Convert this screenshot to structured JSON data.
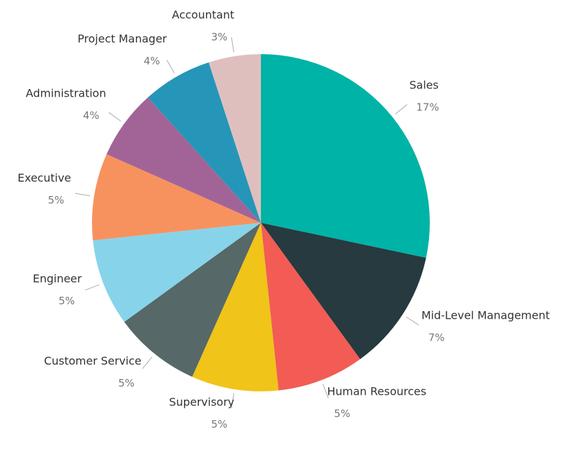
{
  "chart_data": {
    "type": "pie",
    "categories": [
      "Sales",
      "Mid-Level Management",
      "Human Resources",
      "Supervisory",
      "Customer Service",
      "Engineer",
      "Executive",
      "Administration",
      "Project Manager",
      "Accountant"
    ],
    "values": [
      17,
      7,
      5,
      5,
      5,
      5,
      5,
      4,
      4,
      3
    ],
    "value_labels": [
      "17%",
      "7%",
      "5%",
      "5%",
      "5%",
      "5%",
      "5%",
      "4%",
      "4%",
      "3%"
    ],
    "colors": [
      "#00b3a7",
      "#263a40",
      "#f25c54",
      "#f0c419",
      "#566868",
      "#87d4ea",
      "#f7925f",
      "#a26497",
      "#2596b8",
      "#dfbfbe"
    ]
  }
}
